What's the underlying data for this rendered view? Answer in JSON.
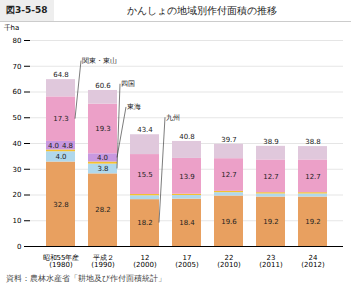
{
  "chart_data": {
    "type": "bar",
    "stacked": true,
    "title": "かんしょの地域別作付面積の推移",
    "subtitle": "図3-5-58",
    "caption": "資料：農林水産省「耕地及び作付面積統計」",
    "ylabel": "千ha",
    "categories": [
      "昭和55年産\n(1980)",
      "平成２\n(1990)",
      "12\n(2000)",
      "17\n(2005)",
      "22\n(2010)",
      "23\n(2011)",
      "24\n(2012)"
    ],
    "series": [
      {
        "color": "#E8A060",
        "values": [
          32.8,
          28.2,
          18.2,
          18.4,
          19.6,
          19.2,
          19.2
        ],
        "data_labels": true
      },
      {
        "color": "#B0D8EC",
        "values": [
          4.0,
          3.8,
          1.5,
          1.4,
          1.3,
          1.2,
          1.2
        ],
        "value_labels": [
          "4.0",
          "3.8",
          null,
          null,
          null,
          null,
          null
        ]
      },
      {
        "color": "#F5C030",
        "values": [
          0.7,
          0.8,
          0.5,
          0.5,
          0.5,
          0.5,
          0.5
        ]
      },
      {
        "color": "#C898E0",
        "values": [
          3.3,
          3.2,
          0.0,
          0.0,
          0.0,
          0.0,
          0.0
        ]
      },
      {
        "color": "#ECA0C8",
        "values": [
          17.3,
          19.3,
          15.5,
          13.9,
          12.7,
          12.7,
          12.7
        ],
        "data_labels": true
      },
      {
        "color": "#E0C8DC",
        "values": [
          6.7,
          5.3,
          7.7,
          6.6,
          5.6,
          5.3,
          5.2
        ]
      }
    ],
    "totals": [
      64.8,
      60.6,
      43.4,
      40.8,
      39.7,
      38.9,
      38.8
    ],
    "ylim": [
      0,
      80
    ],
    "yticks": [
      0,
      10,
      20,
      30,
      40,
      50,
      60,
      70,
      80
    ],
    "grid": true,
    "annotations": [
      {
        "text": "関東・東山"
      },
      {
        "text": "東海"
      },
      {
        "text": "四国"
      },
      {
        "text": "九州"
      },
      {
        "text": "4.0"
      },
      {
        "text": "4.0"
      },
      {
        "text": "4.8"
      }
    ]
  }
}
